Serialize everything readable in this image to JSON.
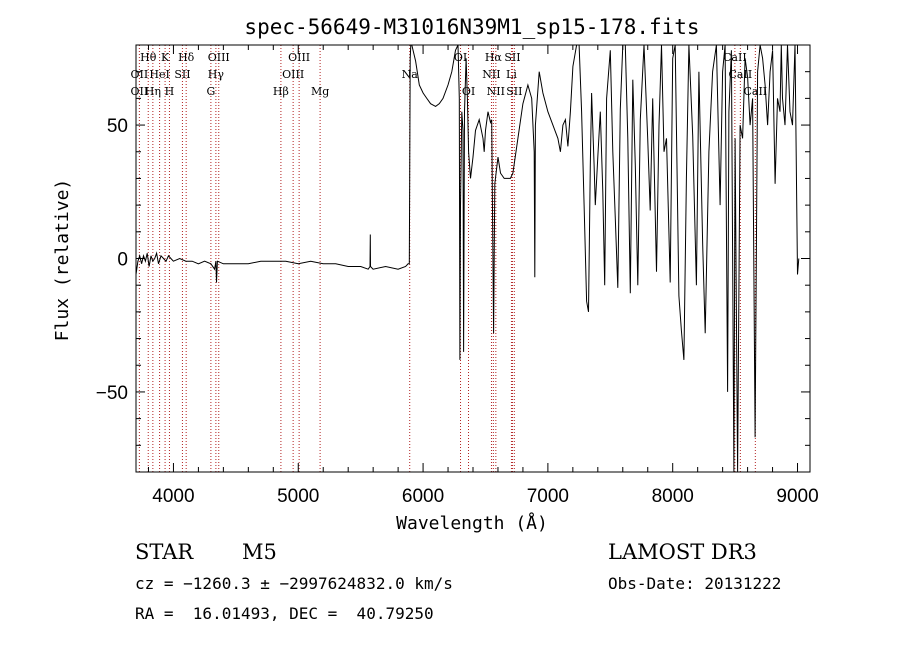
{
  "chart_data": {
    "type": "line",
    "title": "spec-56649-M31016N39M1_sp15-178.fits",
    "xlabel": "Wavelength (Å)",
    "ylabel": "Flux (relative)",
    "xlim": [
      3700,
      9100
    ],
    "ylim": [
      -80,
      80
    ],
    "x_ticks": [
      4000,
      5000,
      6000,
      7000,
      8000,
      9000
    ],
    "y_ticks": [
      -50,
      0,
      50
    ],
    "grid": false,
    "series": [
      {
        "points": [
          [
            3700,
            -6
          ],
          [
            3715,
            -1
          ],
          [
            3730,
            1
          ],
          [
            3745,
            -2
          ],
          [
            3760,
            1
          ],
          [
            3775,
            -1
          ],
          [
            3790,
            2
          ],
          [
            3805,
            -3
          ],
          [
            3820,
            1
          ],
          [
            3835,
            -1
          ],
          [
            3850,
            0
          ],
          [
            3865,
            2
          ],
          [
            3880,
            -2
          ],
          [
            3900,
            1
          ],
          [
            3920,
            0
          ],
          [
            3940,
            -1
          ],
          [
            3960,
            1
          ],
          [
            3980,
            0
          ],
          [
            4000,
            -1
          ],
          [
            4050,
            0
          ],
          [
            4100,
            -1
          ],
          [
            4150,
            -1
          ],
          [
            4200,
            -2
          ],
          [
            4250,
            -1
          ],
          [
            4300,
            -2
          ],
          [
            4330,
            -4
          ],
          [
            4340,
            -1
          ],
          [
            4345,
            -9
          ],
          [
            4352,
            -1
          ],
          [
            4400,
            -2
          ],
          [
            4500,
            -2
          ],
          [
            4600,
            -2
          ],
          [
            4700,
            -1
          ],
          [
            4800,
            -1
          ],
          [
            4900,
            -1
          ],
          [
            5000,
            -2
          ],
          [
            5100,
            -1
          ],
          [
            5200,
            -2
          ],
          [
            5300,
            -2
          ],
          [
            5400,
            -3
          ],
          [
            5500,
            -3
          ],
          [
            5560,
            -4
          ],
          [
            5575,
            -3
          ],
          [
            5577,
            9
          ],
          [
            5579,
            -3
          ],
          [
            5600,
            -4
          ],
          [
            5700,
            -3
          ],
          [
            5800,
            -4
          ],
          [
            5860,
            -3
          ],
          [
            5880,
            -2
          ],
          [
            5890,
            -2
          ],
          [
            5893,
            30
          ],
          [
            5897,
            75
          ],
          [
            5902,
            80
          ],
          [
            5910,
            80
          ],
          [
            5940,
            74
          ],
          [
            5970,
            65
          ],
          [
            6000,
            62
          ],
          [
            6030,
            60
          ],
          [
            6060,
            58
          ],
          [
            6100,
            57
          ],
          [
            6130,
            58
          ],
          [
            6160,
            60
          ],
          [
            6200,
            65
          ],
          [
            6230,
            70
          ],
          [
            6260,
            78
          ],
          [
            6280,
            80
          ],
          [
            6290,
            60
          ],
          [
            6295,
            -38
          ],
          [
            6300,
            20
          ],
          [
            6310,
            55
          ],
          [
            6320,
            48
          ],
          [
            6325,
            -35
          ],
          [
            6332,
            55
          ],
          [
            6345,
            75
          ],
          [
            6355,
            60
          ],
          [
            6365,
            40
          ],
          [
            6380,
            30
          ],
          [
            6400,
            38
          ],
          [
            6420,
            48
          ],
          [
            6450,
            52
          ],
          [
            6480,
            45
          ],
          [
            6490,
            40
          ],
          [
            6500,
            48
          ],
          [
            6520,
            55
          ],
          [
            6540,
            51
          ],
          [
            6550,
            52
          ],
          [
            6565,
            -28
          ],
          [
            6575,
            28
          ],
          [
            6600,
            38
          ],
          [
            6620,
            32
          ],
          [
            6650,
            30
          ],
          [
            6700,
            30
          ],
          [
            6720,
            32
          ],
          [
            6760,
            45
          ],
          [
            6800,
            58
          ],
          [
            6840,
            65
          ],
          [
            6870,
            60
          ],
          [
            6890,
            40
          ],
          [
            6895,
            -7
          ],
          [
            6900,
            50
          ],
          [
            6930,
            70
          ],
          [
            6960,
            62
          ],
          [
            7000,
            55
          ],
          [
            7040,
            50
          ],
          [
            7080,
            45
          ],
          [
            7100,
            40
          ],
          [
            7120,
            50
          ],
          [
            7140,
            52
          ],
          [
            7160,
            42
          ],
          [
            7180,
            55
          ],
          [
            7200,
            72
          ],
          [
            7230,
            80
          ],
          [
            7250,
            80
          ],
          [
            7270,
            55
          ],
          [
            7290,
            20
          ],
          [
            7310,
            -16
          ],
          [
            7325,
            -20
          ],
          [
            7340,
            35
          ],
          [
            7350,
            62
          ],
          [
            7370,
            35
          ],
          [
            7380,
            20
          ],
          [
            7400,
            38
          ],
          [
            7420,
            55
          ],
          [
            7440,
            25
          ],
          [
            7455,
            -10
          ],
          [
            7470,
            60
          ],
          [
            7500,
            78
          ],
          [
            7520,
            40
          ],
          [
            7540,
            15
          ],
          [
            7560,
            -11
          ],
          [
            7580,
            56
          ],
          [
            7600,
            80
          ],
          [
            7620,
            80
          ],
          [
            7640,
            45
          ],
          [
            7660,
            -13
          ],
          [
            7680,
            67
          ],
          [
            7700,
            35
          ],
          [
            7720,
            -10
          ],
          [
            7740,
            52
          ],
          [
            7770,
            80
          ],
          [
            7800,
            45
          ],
          [
            7820,
            18
          ],
          [
            7840,
            60
          ],
          [
            7870,
            -5
          ],
          [
            7890,
            50
          ],
          [
            7910,
            80
          ],
          [
            7930,
            40
          ],
          [
            7950,
            45
          ],
          [
            7980,
            -9
          ],
          [
            8000,
            75
          ],
          [
            8020,
            80
          ],
          [
            8050,
            -14
          ],
          [
            8070,
            -27
          ],
          [
            8090,
            -38
          ],
          [
            8110,
            30
          ],
          [
            8130,
            80
          ],
          [
            8160,
            46
          ],
          [
            8190,
            -10
          ],
          [
            8210,
            70
          ],
          [
            8240,
            5
          ],
          [
            8260,
            -28
          ],
          [
            8290,
            40
          ],
          [
            8320,
            70
          ],
          [
            8350,
            80
          ],
          [
            8380,
            20
          ],
          [
            8400,
            70
          ],
          [
            8420,
            80
          ],
          [
            8440,
            -50
          ],
          [
            8450,
            55
          ],
          [
            8470,
            78
          ],
          [
            8490,
            -80
          ],
          [
            8500,
            45
          ],
          [
            8520,
            -80
          ],
          [
            8540,
            50
          ],
          [
            8560,
            45
          ],
          [
            8580,
            75
          ],
          [
            8600,
            68
          ],
          [
            8620,
            50
          ],
          [
            8640,
            60
          ],
          [
            8660,
            -67
          ],
          [
            8680,
            70
          ],
          [
            8700,
            80
          ],
          [
            8720,
            75
          ],
          [
            8740,
            65
          ],
          [
            8760,
            50
          ],
          [
            8780,
            70
          ],
          [
            8800,
            78
          ],
          [
            8820,
            28
          ],
          [
            8840,
            60
          ],
          [
            8860,
            55
          ],
          [
            8870,
            80
          ],
          [
            8880,
            60
          ],
          [
            8900,
            50
          ],
          [
            8920,
            80
          ],
          [
            8940,
            55
          ],
          [
            8960,
            50
          ],
          [
            8980,
            80
          ],
          [
            9000,
            -6
          ],
          [
            9010,
            0
          ]
        ]
      }
    ],
    "lines": [
      {
        "wl": 3727,
        "labels": [
          "OII"
        ]
      },
      {
        "wl": 3798,
        "labels": [
          "Hθ"
        ]
      },
      {
        "wl": 3835,
        "labels": [
          "Hη"
        ]
      },
      {
        "wl": 3889,
        "labels": [
          "HeI"
        ]
      },
      {
        "wl": 3933,
        "labels": [
          "K"
        ]
      },
      {
        "wl": 3968,
        "labels": [
          "H"
        ]
      },
      {
        "wl": 4072,
        "labels": [
          "SII"
        ]
      },
      {
        "wl": 4102,
        "labels": [
          "Hδ"
        ]
      },
      {
        "wl": 4300,
        "labels": [
          "G"
        ]
      },
      {
        "wl": 4340,
        "labels": [
          "Hγ"
        ]
      },
      {
        "wl": 4363,
        "labels": [
          "OIII"
        ]
      },
      {
        "wl": 4861,
        "labels": [
          "Hβ"
        ]
      },
      {
        "wl": 4959,
        "labels": [
          "OIII"
        ]
      },
      {
        "wl": 5007,
        "labels": [
          "OIII"
        ]
      },
      {
        "wl": 5175,
        "labels": [
          "Mg"
        ]
      },
      {
        "wl": 5893,
        "labels": [
          "Na"
        ]
      },
      {
        "wl": 6300,
        "labels": [
          "OI"
        ]
      },
      {
        "wl": 6364,
        "labels": [
          "OI"
        ]
      },
      {
        "wl": 6548,
        "labels": [
          "NII"
        ]
      },
      {
        "wl": 6563,
        "labels": [
          "Hα"
        ]
      },
      {
        "wl": 6583,
        "labels": [
          "NII"
        ]
      },
      {
        "wl": 6708,
        "labels": [
          "Li"
        ]
      },
      {
        "wl": 6716,
        "labels": [
          "SII"
        ]
      },
      {
        "wl": 6731,
        "labels": [
          "SII"
        ]
      },
      {
        "wl": 8498,
        "labels": [
          "CaII"
        ]
      },
      {
        "wl": 8542,
        "labels": [
          "CaII"
        ]
      },
      {
        "wl": 8662,
        "labels": [
          "CaII"
        ]
      }
    ],
    "line_label_rows": [
      [
        {
          "t": "Hθ",
          "wl": 3798
        },
        {
          "t": "K",
          "wl": 3933
        },
        {
          "t": "Hδ",
          "wl": 4102
        },
        {
          "t": "OIII",
          "wl": 4363
        },
        {
          "t": "OIII",
          "wl": 5007
        },
        {
          "t": "OI",
          "wl": 6300
        },
        {
          "t": "Hα",
          "wl": 6563
        },
        {
          "t": "SII",
          "wl": 6716
        },
        {
          "t": "CaII",
          "wl": 8498
        }
      ],
      [
        {
          "t": "OII",
          "wl": 3727
        },
        {
          "t": "HeI",
          "wl": 3889
        },
        {
          "t": "SII",
          "wl": 4072
        },
        {
          "t": "Hγ",
          "wl": 4340
        },
        {
          "t": "OIII",
          "wl": 4959
        },
        {
          "t": "Na",
          "wl": 5893
        },
        {
          "t": "NII",
          "wl": 6548
        },
        {
          "t": "Li",
          "wl": 6708
        },
        {
          "t": "CaII",
          "wl": 8542
        }
      ],
      [
        {
          "t": "OII",
          "wl": 3727
        },
        {
          "t": "Hη",
          "wl": 3835
        },
        {
          "t": "H",
          "wl": 3968
        },
        {
          "t": "G",
          "wl": 4300
        },
        {
          "t": "Hβ",
          "wl": 4861
        },
        {
          "t": "Mg",
          "wl": 5175
        },
        {
          "t": "OI",
          "wl": 6364
        },
        {
          "t": "NII",
          "wl": 6583
        },
        {
          "t": "SII",
          "wl": 6731
        },
        {
          "t": "CaII",
          "wl": 8662
        }
      ]
    ],
    "line_color": "#b22222"
  },
  "info": {
    "class": "STAR",
    "subclass": "M5",
    "survey": "LAMOST DR3",
    "cz": "cz = −1260.3 ± −2997624832.0 km/s",
    "obs_date": "Obs-Date: 20131222",
    "radec": "RA =  16.01493, DEC =  40.79250"
  }
}
